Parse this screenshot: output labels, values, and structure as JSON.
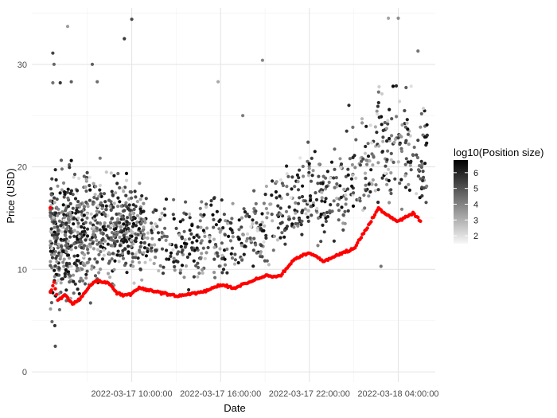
{
  "chart_data": {
    "type": "scatter",
    "title": "",
    "xlabel": "Date",
    "ylabel": "Price (USD)",
    "x_ticks": [
      {
        "time": "2022-03-17T10:00:00",
        "label": "2022-03-17 10:00:00"
      },
      {
        "time": "2022-03-17T16:00:00",
        "label": "2022-03-17 16:00:00"
      },
      {
        "time": "2022-03-17T22:00:00",
        "label": "2022-03-17 22:00:00"
      },
      {
        "time": "2022-03-18T04:00:00",
        "label": "2022-03-18 04:00:00"
      }
    ],
    "xlim": [
      "2022-03-17T03:15:00",
      "2022-03-18T06:30:00"
    ],
    "y_ticks": [
      0,
      10,
      20,
      30
    ],
    "ylim": [
      -1,
      35.5
    ],
    "grid": true,
    "legend": {
      "title": "log10(Position size)",
      "placement": "right",
      "ticks": [
        2,
        3,
        4,
        5,
        6
      ],
      "range": [
        1.5,
        6.8
      ],
      "color_low": "#f7f7f7",
      "color_high": "#000000"
    },
    "series": [
      {
        "kind": "positions",
        "note": "Scatter of individual positions; grey level encodes log10(position size). Approximate envelope by time.",
        "envelope": [
          {
            "time": "2022-03-17T05:00:00",
            "low": 4.5,
            "high": 21
          },
          {
            "time": "2022-03-17T07:00:00",
            "low": 6,
            "high": 22
          },
          {
            "time": "2022-03-17T09:00:00",
            "low": 7.5,
            "high": 21
          },
          {
            "time": "2022-03-17T11:00:00",
            "low": 8,
            "high": 19
          },
          {
            "time": "2022-03-17T13:00:00",
            "low": 7.5,
            "high": 17
          },
          {
            "time": "2022-03-17T15:00:00",
            "low": 7.5,
            "high": 18
          },
          {
            "time": "2022-03-17T17:00:00",
            "low": 8,
            "high": 17.5
          },
          {
            "time": "2022-03-17T19:00:00",
            "low": 8.5,
            "high": 19
          },
          {
            "time": "2022-03-17T21:00:00",
            "low": 10,
            "high": 23
          },
          {
            "time": "2022-03-17T23:00:00",
            "low": 10.5,
            "high": 23
          },
          {
            "time": "2022-03-18T01:00:00",
            "low": 12,
            "high": 25
          },
          {
            "time": "2022-03-18T03:00:00",
            "low": 14.5,
            "high": 31
          },
          {
            "time": "2022-03-18T05:00:00",
            "low": 14,
            "high": 28
          }
        ],
        "outliers": [
          {
            "time": "2022-03-17T04:40:00",
            "value": 31.1
          },
          {
            "time": "2022-03-17T04:45:00",
            "value": 30.0
          },
          {
            "time": "2022-03-17T04:40:00",
            "value": 28.2
          },
          {
            "time": "2022-03-17T05:10:00",
            "value": 28.2
          },
          {
            "time": "2022-03-17T05:40:00",
            "value": 33.7
          },
          {
            "time": "2022-03-17T05:55:00",
            "value": 28.3
          },
          {
            "time": "2022-03-17T07:20:00",
            "value": 30.0
          },
          {
            "time": "2022-03-17T07:40:00",
            "value": 28.3
          },
          {
            "time": "2022-03-17T09:30:00",
            "value": 32.5
          },
          {
            "time": "2022-03-17T10:00:00",
            "value": 34.4
          },
          {
            "time": "2022-03-17T15:50:00",
            "value": 28.3
          },
          {
            "time": "2022-03-17T17:30:00",
            "value": 25.0
          },
          {
            "time": "2022-03-17T18:50:00",
            "value": 30.4
          },
          {
            "time": "2022-03-17T04:50:00",
            "value": 2.5
          },
          {
            "time": "2022-03-18T00:40:00",
            "value": 26.0
          },
          {
            "time": "2022-03-18T02:50:00",
            "value": 10.3
          },
          {
            "time": "2022-03-18T03:20:00",
            "value": 34.5
          },
          {
            "time": "2022-03-18T04:00:00",
            "value": 34.5
          },
          {
            "time": "2022-03-18T05:20:00",
            "value": 31.3
          }
        ]
      },
      {
        "kind": "reference",
        "color": "#ff0000",
        "points": [
          {
            "time": "2022-03-17T04:30:00",
            "value": 16.0
          },
          {
            "time": "2022-03-17T04:30:00",
            "value": 7.8
          },
          {
            "time": "2022-03-17T04:45:00",
            "value": 8.7
          },
          {
            "time": "2022-03-17T05:00:00",
            "value": 7.0
          },
          {
            "time": "2022-03-17T05:30:00",
            "value": 7.5
          },
          {
            "time": "2022-03-17T06:00:00",
            "value": 6.6
          },
          {
            "time": "2022-03-17T06:30:00",
            "value": 7.1
          },
          {
            "time": "2022-03-17T07:00:00",
            "value": 8.1
          },
          {
            "time": "2022-03-17T07:30:00",
            "value": 8.9
          },
          {
            "time": "2022-03-17T08:00:00",
            "value": 8.8
          },
          {
            "time": "2022-03-17T08:30:00",
            "value": 8.6
          },
          {
            "time": "2022-03-17T09:00:00",
            "value": 7.7
          },
          {
            "time": "2022-03-17T09:30:00",
            "value": 7.5
          },
          {
            "time": "2022-03-17T10:00:00",
            "value": 7.6
          },
          {
            "time": "2022-03-17T10:30:00",
            "value": 8.2
          },
          {
            "time": "2022-03-17T11:00:00",
            "value": 8.0
          },
          {
            "time": "2022-03-17T12:00:00",
            "value": 7.7
          },
          {
            "time": "2022-03-17T13:00:00",
            "value": 7.4
          },
          {
            "time": "2022-03-17T14:00:00",
            "value": 7.6
          },
          {
            "time": "2022-03-17T15:00:00",
            "value": 7.9
          },
          {
            "time": "2022-03-17T16:00:00",
            "value": 8.5
          },
          {
            "time": "2022-03-17T17:00:00",
            "value": 8.2
          },
          {
            "time": "2022-03-17T18:00:00",
            "value": 8.8
          },
          {
            "time": "2022-03-17T19:00:00",
            "value": 9.4
          },
          {
            "time": "2022-03-17T20:00:00",
            "value": 9.3
          },
          {
            "time": "2022-03-17T21:00:00",
            "value": 11.0
          },
          {
            "time": "2022-03-17T22:00:00",
            "value": 11.6
          },
          {
            "time": "2022-03-17T23:00:00",
            "value": 10.8
          },
          {
            "time": "2022-03-18T00:00:00",
            "value": 11.5
          },
          {
            "time": "2022-03-18T01:00:00",
            "value": 12.0
          },
          {
            "time": "2022-03-18T02:00:00",
            "value": 14.3
          },
          {
            "time": "2022-03-18T02:40:00",
            "value": 16.0
          },
          {
            "time": "2022-03-18T03:00:00",
            "value": 15.5
          },
          {
            "time": "2022-03-18T04:00:00",
            "value": 14.7
          },
          {
            "time": "2022-03-18T05:00:00",
            "value": 15.5
          },
          {
            "time": "2022-03-18T05:30:00",
            "value": 14.7
          }
        ]
      }
    ]
  }
}
